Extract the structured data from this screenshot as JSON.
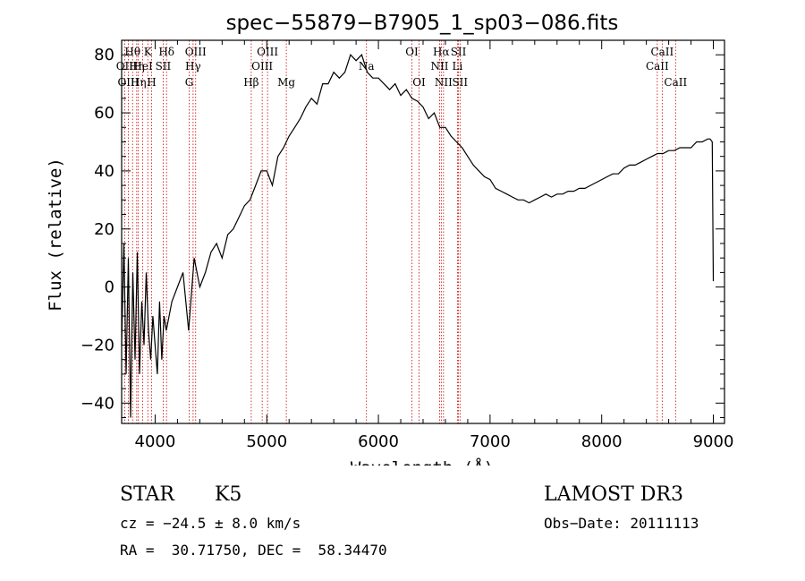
{
  "chart_data": {
    "type": "line",
    "title": "spec−55879−B7905_1_sp03−086.fits",
    "xlabel": "Wavelength (Å)",
    "ylabel": "Flux (relative)",
    "xlim": [
      3700,
      9100
    ],
    "ylim": [
      -47,
      85
    ],
    "xticks": [
      4000,
      5000,
      6000,
      7000,
      8000,
      9000
    ],
    "yticks": [
      -40,
      -20,
      0,
      20,
      40,
      60,
      80
    ],
    "ytick_labels": [
      "−40",
      "−20",
      "0",
      "20",
      "40",
      "60",
      "80"
    ],
    "series": [
      {
        "name": "flux",
        "x": [
          3700,
          3720,
          3740,
          3760,
          3780,
          3800,
          3820,
          3840,
          3860,
          3880,
          3900,
          3920,
          3940,
          3960,
          3980,
          4000,
          4020,
          4040,
          4060,
          4080,
          4100,
          4150,
          4200,
          4250,
          4300,
          4350,
          4400,
          4450,
          4500,
          4550,
          4600,
          4650,
          4700,
          4750,
          4800,
          4850,
          4900,
          4950,
          5000,
          5050,
          5100,
          5150,
          5200,
          5250,
          5300,
          5350,
          5400,
          5450,
          5500,
          5550,
          5600,
          5650,
          5700,
          5750,
          5800,
          5850,
          5900,
          5950,
          6000,
          6050,
          6100,
          6150,
          6200,
          6250,
          6300,
          6350,
          6400,
          6450,
          6500,
          6550,
          6600,
          6650,
          6700,
          6750,
          6800,
          6850,
          6900,
          6950,
          7000,
          7050,
          7100,
          7150,
          7200,
          7250,
          7300,
          7350,
          7400,
          7450,
          7500,
          7550,
          7600,
          7650,
          7700,
          7750,
          7800,
          7850,
          7900,
          7950,
          8000,
          8050,
          8100,
          8150,
          8200,
          8250,
          8300,
          8350,
          8400,
          8450,
          8500,
          8550,
          8600,
          8650,
          8700,
          8750,
          8800,
          8850,
          8900,
          8950,
          8970,
          8990,
          9000
        ],
        "y": [
          -20,
          15,
          -30,
          10,
          -45,
          5,
          -25,
          12,
          -30,
          -5,
          -20,
          5,
          -15,
          -25,
          -10,
          -20,
          -30,
          -5,
          -25,
          -10,
          -15,
          -5,
          0,
          5,
          -15,
          10,
          0,
          5,
          12,
          15,
          10,
          18,
          20,
          24,
          28,
          30,
          35,
          40,
          40,
          35,
          45,
          48,
          52,
          55,
          58,
          62,
          65,
          63,
          70,
          70,
          74,
          72,
          74,
          80,
          78,
          80,
          74,
          72,
          72,
          70,
          68,
          70,
          66,
          68,
          65,
          64,
          62,
          58,
          60,
          55,
          55,
          52,
          50,
          48,
          45,
          42,
          40,
          38,
          37,
          34,
          33,
          32,
          31,
          30,
          30,
          29,
          30,
          31,
          32,
          31,
          32,
          32,
          33,
          33,
          34,
          34,
          35,
          36,
          37,
          38,
          39,
          39,
          41,
          42,
          42,
          43,
          44,
          45,
          46,
          46,
          47,
          47,
          48,
          48,
          48,
          50,
          50,
          51,
          51,
          50,
          2
        ]
      }
    ],
    "reference_lines": [
      {
        "label": "Hθ",
        "wavelength": 3798,
        "row": 0
      },
      {
        "label": "K",
        "wavelength": 3934,
        "row": 0
      },
      {
        "label": "Hδ",
        "wavelength": 4102,
        "row": 0
      },
      {
        "label": "OIII",
        "wavelength": 4363,
        "row": 0
      },
      {
        "label": "OIII",
        "wavelength": 5007,
        "row": 0
      },
      {
        "label": "OI",
        "wavelength": 6300,
        "row": 0
      },
      {
        "label": "Hα",
        "wavelength": 6563,
        "row": 0
      },
      {
        "label": "SII",
        "wavelength": 6717,
        "row": 0
      },
      {
        "label": "CaII",
        "wavelength": 8542,
        "row": 0
      },
      {
        "label": "OII",
        "wavelength": 3727,
        "row": 1
      },
      {
        "label": "Hη",
        "wavelength": 3835,
        "row": 1
      },
      {
        "label": "HeI",
        "wavelength": 3889,
        "row": 1
      },
      {
        "label": "SII",
        "wavelength": 4072,
        "row": 1
      },
      {
        "label": "Hγ",
        "wavelength": 4340,
        "row": 1
      },
      {
        "label": "OIII",
        "wavelength": 4959,
        "row": 1
      },
      {
        "label": "Na",
        "wavelength": 5893,
        "row": 1
      },
      {
        "label": "NII",
        "wavelength": 6548,
        "row": 1
      },
      {
        "label": "Li",
        "wavelength": 6708,
        "row": 1
      },
      {
        "label": "CaII",
        "wavelength": 8498,
        "row": 1
      },
      {
        "label": "OIII",
        "wavelength": 3760,
        "row": 2
      },
      {
        "label": "Hη",
        "wavelength": 3850,
        "row": 2
      },
      {
        "label": "H",
        "wavelength": 3968,
        "row": 2
      },
      {
        "label": "G",
        "wavelength": 4305,
        "row": 2
      },
      {
        "label": "Hβ",
        "wavelength": 4861,
        "row": 2
      },
      {
        "label": "Mg",
        "wavelength": 5175,
        "row": 2
      },
      {
        "label": "OI",
        "wavelength": 6364,
        "row": 2
      },
      {
        "label": "NII",
        "wavelength": 6583,
        "row": 2
      },
      {
        "label": "SII",
        "wavelength": 6731,
        "row": 2
      },
      {
        "label": "CaII",
        "wavelength": 8662,
        "row": 2
      }
    ]
  },
  "info": {
    "object_class": "STAR",
    "subclass": "K5",
    "survey": "LAMOST DR3",
    "cz": "cz = −24.5 ± 8.0 km/s",
    "obs_date": "Obs−Date: 20111113",
    "coords": "RA =  30.71750, DEC =  58.34470"
  },
  "colors": {
    "spectrum": "#000000",
    "reference_line": "#cc0000",
    "axis": "#000000"
  }
}
